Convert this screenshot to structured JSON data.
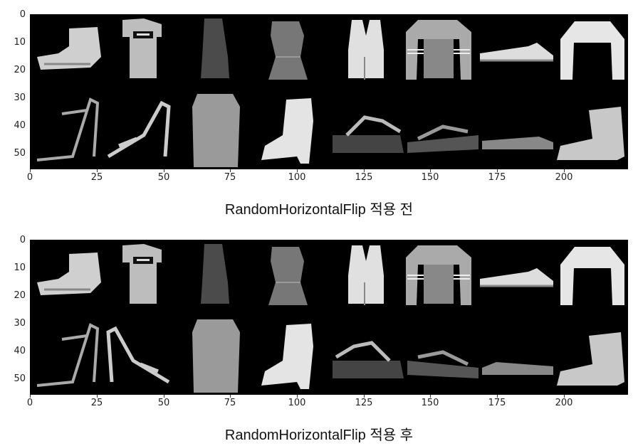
{
  "panels": [
    {
      "id": "before",
      "caption": "RandomHorizontalFlip 적용 전",
      "yticks": [
        "0",
        "10",
        "20",
        "30",
        "40",
        "50"
      ],
      "xticks": [
        "0",
        "25",
        "50",
        "75",
        "100",
        "125",
        "150",
        "175",
        "200"
      ],
      "row1": [
        "ankle-boot",
        "t-shirt",
        "dress-dark",
        "dress-ruffle",
        "top-sleeveless",
        "pullover-stripe",
        "sneaker",
        "pullover-white"
      ],
      "row2": [
        "sandal-heel",
        "sandal-heel",
        "dress-light",
        "ankle-boot-heel",
        "sandal-platform",
        "sandal-flat",
        "sneaker-low",
        "ankle-boot"
      ]
    },
    {
      "id": "after",
      "caption": "RandomHorizontalFlip 적용 후",
      "yticks": [
        "0",
        "10",
        "20",
        "30",
        "40",
        "50"
      ],
      "xticks": [
        "0",
        "25",
        "50",
        "75",
        "100",
        "125",
        "150",
        "175",
        "200"
      ],
      "row1": [
        "ankle-boot",
        "t-shirt",
        "dress-dark",
        "dress-ruffle",
        "top-sleeveless",
        "pullover-stripe",
        "sneaker",
        "pullover-white"
      ],
      "row2": [
        "sandal-heel",
        "sandal-heel",
        "dress-light",
        "ankle-boot-heel",
        "sandal-platform",
        "sandal-flat",
        "sneaker-low",
        "ankle-boot"
      ]
    }
  ]
}
